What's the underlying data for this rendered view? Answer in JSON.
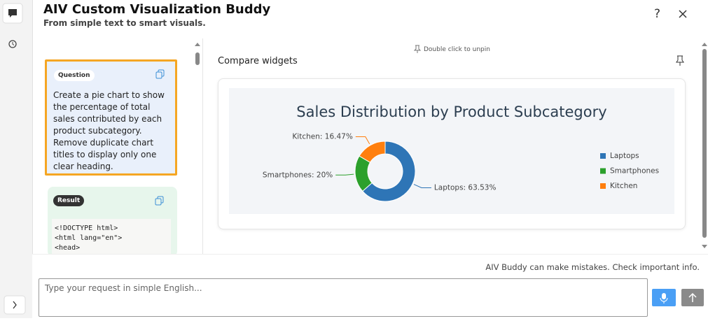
{
  "header": {
    "title": "AIV Custom Visualization Buddy",
    "subtitle": "From simple text to smart visuals."
  },
  "conversation": {
    "question_tag": "Question",
    "question": "Create a pie chart to show the percentage of total sales contributed by each product subcategory. Remove duplicate chart titles to display only one clear heading.",
    "result_tag": "Result",
    "code_lines": [
      "<!DOCTYPE html>",
      "<html lang=\"en\">",
      "<head>"
    ]
  },
  "pin_hint": "Double click to unpin",
  "widget_title": "Compare widgets",
  "chart_data": {
    "type": "pie",
    "title": "Sales Distribution by Product Subcategory",
    "categories": [
      "Laptops",
      "Smartphones",
      "Kitchen"
    ],
    "values": [
      63.53,
      20,
      16.47
    ],
    "value_labels": [
      "Laptops: 63.53%",
      "Smartphones: 20%",
      "Kitchen: 16.47%"
    ],
    "colors": [
      "#2e75b6",
      "#2ca02c",
      "#ff7f0e"
    ],
    "donut": true,
    "legend": "right"
  },
  "footer": {
    "disclaimer": "AIV Buddy can make mistakes. Check important info.",
    "input_placeholder": "Type your request in simple English..."
  }
}
